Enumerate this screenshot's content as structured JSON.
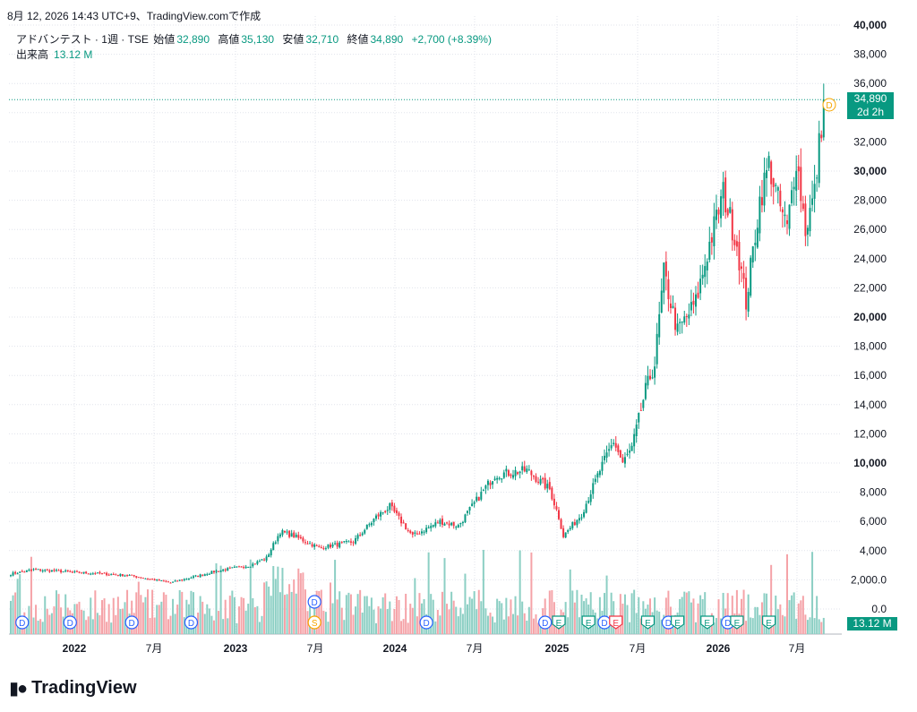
{
  "header": {
    "timestamp": "8月 12, 2026 14:43 UTC+9、TradingView.comで作成"
  },
  "legend": {
    "symbol": "アドバンテスト · 1週 · TSE",
    "open_label": "始値",
    "open": "32,890",
    "high_label": "高値",
    "high": "35,130",
    "low_label": "安値",
    "low": "32,710",
    "close_label": "終値",
    "close": "34,890",
    "change": "+2,700 (+8.39%)",
    "volume_label": "出来高",
    "volume": "13.12 M"
  },
  "price_tag": {
    "price": "34,890",
    "countdown": "2d 2h"
  },
  "volume_tag": "13.12 M",
  "brand": {
    "name": "TradingView"
  },
  "colors": {
    "up": "#089981",
    "down": "#F23645",
    "up_vol": "#8CCFC4",
    "down_vol": "#F5A3A8",
    "grid": "#E0E3EB"
  },
  "chart_data": {
    "type": "candlestick",
    "y_ticks": [
      "40,000",
      "38,000",
      "36,000",
      "34,000",
      "32,000",
      "30,000",
      "28,000",
      "26,000",
      "24,000",
      "22,000",
      "20,000",
      "18,000",
      "16,000",
      "14,000",
      "12,000",
      "10,000",
      "8,000",
      "6,000",
      "4,000",
      "2,000.0",
      "0.0"
    ],
    "bold_ticks": [
      "40,000",
      "30,000",
      "20,000",
      "10,000"
    ],
    "ylim": [
      0,
      40000
    ],
    "x_ticks": [
      "2022",
      "7月",
      "2023",
      "7月",
      "2024",
      "7月",
      "2025",
      "7月",
      "2026",
      "7月"
    ],
    "bold_x_ticks": [
      "2022",
      "2023",
      "2024",
      "2025",
      "2026"
    ],
    "last_close": 34890,
    "anchors": [
      [
        0,
        2400
      ],
      [
        10,
        2700
      ],
      [
        30,
        2500
      ],
      [
        52,
        2300
      ],
      [
        70,
        1800
      ],
      [
        90,
        2600
      ],
      [
        105,
        3000
      ],
      [
        112,
        3500
      ],
      [
        118,
        5300
      ],
      [
        124,
        5000
      ],
      [
        135,
        4200
      ],
      [
        150,
        4600
      ],
      [
        160,
        6300
      ],
      [
        166,
        7000
      ],
      [
        176,
        5000
      ],
      [
        188,
        6000
      ],
      [
        196,
        5700
      ],
      [
        212,
        9200
      ],
      [
        226,
        9500
      ],
      [
        236,
        8200
      ],
      [
        240,
        6300
      ],
      [
        242,
        5000
      ],
      [
        250,
        6500
      ],
      [
        258,
        9500
      ],
      [
        264,
        11500
      ],
      [
        268,
        10000
      ],
      [
        272,
        11000
      ],
      [
        278,
        15000
      ],
      [
        282,
        16800
      ],
      [
        286,
        23000
      ],
      [
        292,
        19000
      ],
      [
        300,
        21000
      ],
      [
        306,
        25000
      ],
      [
        312,
        28500
      ],
      [
        318,
        25000
      ],
      [
        322,
        21000
      ],
      [
        328,
        28000
      ],
      [
        332,
        30500
      ],
      [
        336,
        28000
      ],
      [
        340,
        26000
      ],
      [
        344,
        31000
      ],
      [
        348,
        26000
      ],
      [
        352,
        28500
      ],
      [
        356,
        34890
      ]
    ],
    "events": [
      {
        "label": "D",
        "type": "dividend",
        "week": 5
      },
      {
        "label": "D",
        "type": "dividend",
        "week": 26
      },
      {
        "label": "D",
        "type": "dividend",
        "week": 53
      },
      {
        "label": "D",
        "type": "dividend",
        "week": 79
      },
      {
        "label": "D",
        "type": "dividend",
        "week": 133
      },
      {
        "label": "S",
        "type": "split",
        "week": 133
      },
      {
        "label": "D",
        "type": "dividend",
        "week": 182
      },
      {
        "label": "D",
        "type": "dividend",
        "week": 234
      },
      {
        "label": "E",
        "type": "earnings",
        "week": 240
      },
      {
        "label": "E",
        "type": "earnings",
        "week": 253
      },
      {
        "label": "D",
        "type": "dividend",
        "week": 260
      },
      {
        "label": "E",
        "type": "earnings-miss",
        "week": 265
      },
      {
        "label": "E",
        "type": "earnings",
        "week": 279
      },
      {
        "label": "D",
        "type": "dividend",
        "week": 288
      },
      {
        "label": "E",
        "type": "earnings",
        "week": 292
      },
      {
        "label": "E",
        "type": "earnings",
        "week": 305
      },
      {
        "label": "D",
        "type": "dividend",
        "week": 314
      },
      {
        "label": "E",
        "type": "earnings",
        "week": 318
      },
      {
        "label": "E",
        "type": "earnings",
        "week": 332
      }
    ]
  }
}
